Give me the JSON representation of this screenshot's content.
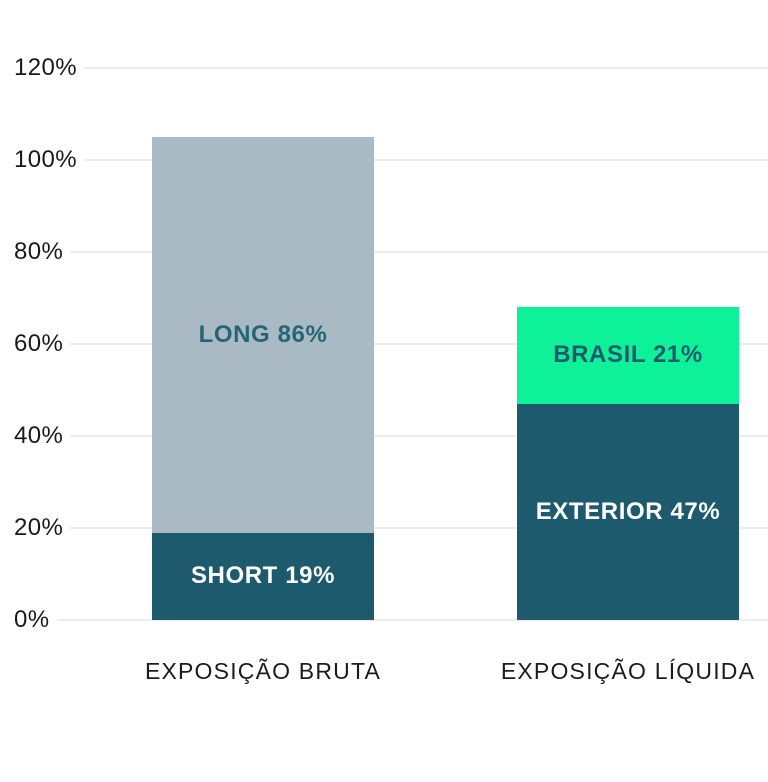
{
  "chart_data": {
    "type": "bar",
    "stacked": true,
    "title": "",
    "xlabel": "",
    "ylabel": "",
    "background_color": "#ffffff",
    "gridline_color": "#ededed",
    "axis_text_color": "#1a1a1a",
    "grid": true,
    "categories": [
      "EXPOSIÇÃO BRUTA",
      "EXPOSIÇÃO LÍQUIDA"
    ],
    "y_axis": {
      "min": 0,
      "max": 120,
      "tick_values": [
        120,
        100,
        80,
        60,
        40,
        20,
        0
      ],
      "ticks": [
        "120%",
        "100%",
        "80%",
        "60%",
        "40%",
        "20%",
        "0%"
      ]
    },
    "bars": [
      {
        "category": "EXPOSIÇÃO BRUTA",
        "total": 105,
        "segments": [
          {
            "name": "SHORT",
            "value": 19,
            "label": "SHORT 19%",
            "color": "#1e5a6d",
            "label_color": "#ffffff"
          },
          {
            "name": "LONG",
            "value": 86,
            "label": "LONG 86%",
            "color": "#a9bac4",
            "label_color": "#266578"
          }
        ]
      },
      {
        "category": "EXPOSIÇÃO LÍQUIDA",
        "total": 68,
        "segments": [
          {
            "name": "EXTERIOR",
            "value": 47,
            "label": "EXTERIOR 47%",
            "color": "#1e5a6d",
            "label_color": "#ffffff"
          },
          {
            "name": "BRASIL",
            "value": 21,
            "label": "BRASIL 21%",
            "color": "#0df299",
            "label_color": "#1d5a6d"
          }
        ]
      }
    ]
  }
}
